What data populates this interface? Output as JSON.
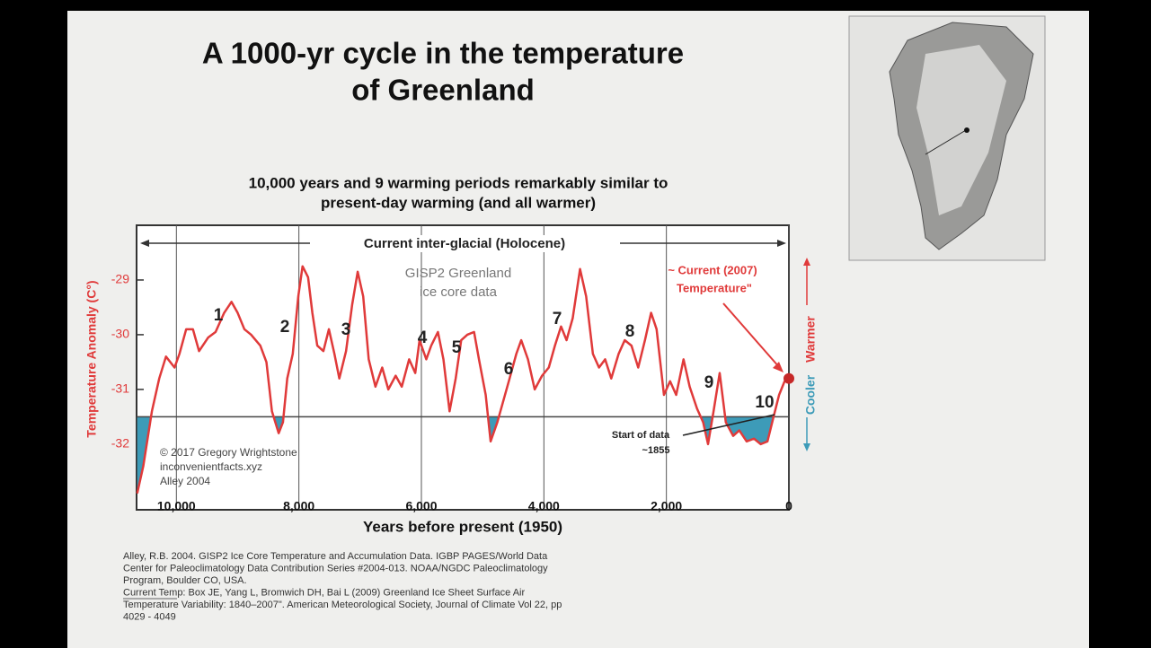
{
  "chart_data": {
    "type": "line",
    "title": [
      "A 1000-yr cycle in the temperature",
      "of Greenland"
    ],
    "subtitle": [
      "10,000 years and 9 warming periods remarkably similar to",
      "present-day warming (and all warmer)"
    ],
    "x_label": "Years before present (1950)",
    "y_label": "Temperature Anomaly (C°)",
    "xlim": [
      10650,
      0
    ],
    "ylim": [
      -33.2,
      -28
    ],
    "xticks": [
      {
        "value": 10000,
        "label": "10,000"
      },
      {
        "value": 8000,
        "label": "8,000"
      },
      {
        "value": 6000,
        "label": "6,000"
      },
      {
        "value": 4000,
        "label": "4,000"
      },
      {
        "value": 2000,
        "label": "2,000"
      },
      0
    ],
    "yticks": [
      -29,
      -30,
      -31,
      -32
    ],
    "grid": true,
    "color": "#e03a3a",
    "shade_color": "#3d9bb8",
    "x": [
      10640,
      10540,
      10400,
      10280,
      10170,
      10030,
      9950,
      9840,
      9730,
      9630,
      9480,
      9360,
      9220,
      9100,
      9000,
      8890,
      8780,
      8630,
      8530,
      8440,
      8330,
      8260,
      8190,
      8100,
      8010,
      7940,
      7850,
      7780,
      7700,
      7600,
      7510,
      7420,
      7340,
      7230,
      7130,
      7040,
      6950,
      6860,
      6750,
      6640,
      6540,
      6420,
      6320,
      6200,
      6100,
      6030,
      5920,
      5840,
      5730,
      5640,
      5540,
      5440,
      5350,
      5250,
      5140,
      5060,
      4950,
      4870,
      4760,
      4660,
      4560,
      4450,
      4370,
      4260,
      4150,
      4030,
      3920,
      3820,
      3720,
      3630,
      3530,
      3410,
      3310,
      3200,
      3100,
      3000,
      2900,
      2780,
      2680,
      2570,
      2460,
      2350,
      2250,
      2160,
      2040,
      1940,
      1840,
      1720,
      1620,
      1500,
      1400,
      1320,
      1230,
      1130,
      1030,
      910,
      810,
      690,
      570,
      460,
      350,
      250,
      160,
      70
    ],
    "values": [
      -32.9,
      -32.4,
      -31.4,
      -30.8,
      -30.4,
      -30.6,
      -30.35,
      -29.9,
      -29.9,
      -30.3,
      -30.05,
      -29.95,
      -29.6,
      -29.4,
      -29.6,
      -29.9,
      -30.0,
      -30.2,
      -30.5,
      -31.4,
      -31.8,
      -31.6,
      -30.8,
      -30.35,
      -29.3,
      -28.75,
      -28.95,
      -29.6,
      -30.2,
      -30.3,
      -29.9,
      -30.35,
      -30.8,
      -30.3,
      -29.45,
      -28.85,
      -29.3,
      -30.45,
      -30.95,
      -30.6,
      -31.0,
      -30.75,
      -30.95,
      -30.45,
      -30.7,
      -30.1,
      -30.45,
      -30.2,
      -29.95,
      -30.45,
      -31.4,
      -30.8,
      -30.1,
      -30.0,
      -29.95,
      -30.45,
      -31.1,
      -31.95,
      -31.6,
      -31.2,
      -30.8,
      -30.35,
      -30.1,
      -30.45,
      -31.0,
      -30.75,
      -30.6,
      -30.2,
      -29.85,
      -30.1,
      -29.7,
      -28.8,
      -29.3,
      -30.35,
      -30.6,
      -30.45,
      -30.8,
      -30.35,
      -30.1,
      -30.2,
      -30.6,
      -30.1,
      -29.6,
      -29.9,
      -31.1,
      -30.85,
      -31.1,
      -30.45,
      -30.95,
      -31.35,
      -31.6,
      -32.0,
      -31.4,
      -30.7,
      -31.6,
      -31.85,
      -31.75,
      -31.95,
      -31.9,
      -32.0,
      -31.95,
      -31.5,
      -31.1,
      -30.85
    ],
    "reference_line": -31.5,
    "highlight": {
      "x": 0,
      "value": -30.8
    },
    "period_label": "Current inter-glacial (Holocene)",
    "source_label": [
      "GISP2 Greenland",
      "ice core data"
    ],
    "warming_periods": [
      "1",
      "2",
      "3",
      "4",
      "5",
      "6",
      "7",
      "8",
      "9",
      "10"
    ],
    "current_label": [
      "~ Current (2007)",
      "Temperature\""
    ],
    "start_label": [
      "Start of data",
      "~1855"
    ],
    "warmer_label": "Warmer",
    "cooler_label": "Cooler",
    "credits": [
      "© 2017 Gregory Wrightstone",
      "inconvenientfacts.xyz",
      "Alley 2004"
    ]
  },
  "references": [
    "Alley, R.B.  2004.  GISP2 Ice Core Temperature and Accumulation Data.  IGBP PAGES/World Data",
    "Center for Paleoclimatology Data Contribution Series #2004-013.  NOAA/NGDC Paleoclimatology",
    "Program, Boulder CO, USA.",
    "Current Temp: Box JE, Yang L, Bromwich DH, Bai L (2009) Greenland Ice Sheet Surface Air",
    "Temperature Variability: 1840–2007\". American Meteorological Society, Journal of Climate Vol 22, pp",
    "4029 - 4049"
  ]
}
